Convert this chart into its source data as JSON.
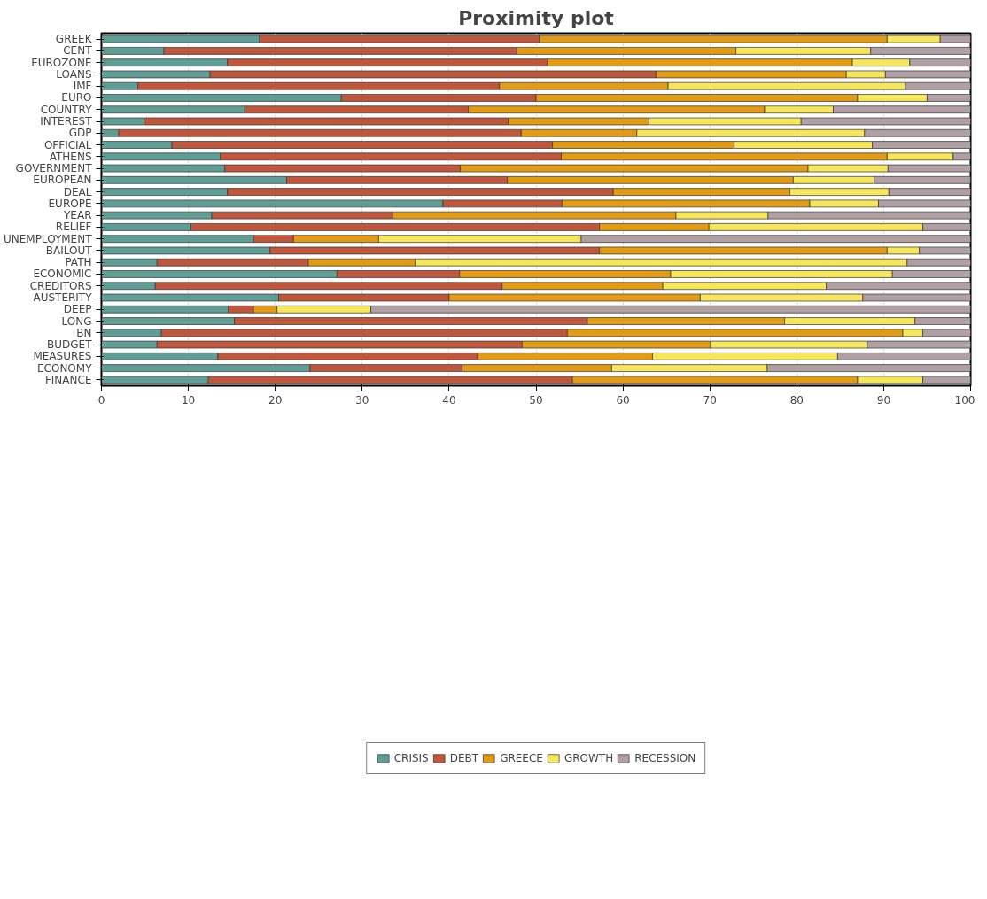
{
  "chart_data": {
    "type": "bar",
    "title": "Proximity plot",
    "orientation": "horizontal",
    "stacked": true,
    "categories": [
      "GREEK",
      "CENT",
      "EUROZONE",
      "LOANS",
      "IMF",
      "EURO",
      "COUNTRY",
      "INTEREST",
      "GDP",
      "OFFICIAL",
      "ATHENS",
      "GOVERNMENT",
      "EUROPEAN",
      "DEAL",
      "EUROPE",
      "YEAR",
      "RELIEF",
      "UNEMPLOYMENT",
      "BAILOUT",
      "PATH",
      "ECONOMIC",
      "CREDITORS",
      "AUSTERITY",
      "DEEP",
      "LONG",
      "BN",
      "BUDGET",
      "MEASURES",
      "ECONOMY",
      "FINANCE"
    ],
    "series": [
      {
        "name": "CRISIS",
        "color": "#5f9e96",
        "values": [
          18.2,
          7.2,
          14.5,
          12.5,
          4.2,
          27.6,
          16.5,
          4.9,
          2.0,
          8.1,
          13.7,
          14.2,
          21.3,
          14.5,
          39.3,
          12.7,
          10.3,
          17.5,
          19.4,
          6.4,
          27.1,
          6.2,
          20.4,
          14.6,
          15.3,
          6.9,
          6.4,
          13.4,
          24.0,
          12.3
        ]
      },
      {
        "name": "DEBT",
        "color": "#c0573a",
        "values": [
          32.2,
          40.6,
          36.8,
          51.3,
          41.6,
          22.4,
          25.7,
          41.9,
          46.3,
          43.8,
          39.2,
          27.1,
          25.4,
          44.4,
          13.7,
          20.8,
          47.0,
          4.6,
          37.9,
          17.4,
          14.1,
          39.9,
          19.6,
          2.9,
          40.6,
          46.7,
          42.0,
          29.9,
          17.5,
          41.9
        ]
      },
      {
        "name": "GREECE",
        "color": "#e39b14",
        "values": [
          40.0,
          25.2,
          35.1,
          21.9,
          19.4,
          37.0,
          34.1,
          16.2,
          13.3,
          20.9,
          37.5,
          40.0,
          32.9,
          20.3,
          28.5,
          32.6,
          12.6,
          9.8,
          33.1,
          12.3,
          24.3,
          18.5,
          28.9,
          2.7,
          22.7,
          38.6,
          21.7,
          20.1,
          17.2,
          32.8
        ]
      },
      {
        "name": "GROWTH",
        "color": "#f5e65a",
        "values": [
          6.1,
          15.5,
          6.6,
          4.5,
          27.3,
          8.0,
          7.9,
          17.5,
          26.2,
          15.9,
          7.6,
          9.2,
          9.3,
          11.4,
          7.9,
          10.6,
          24.6,
          23.3,
          3.7,
          56.6,
          25.5,
          18.8,
          18.7,
          10.8,
          15.0,
          2.3,
          18.0,
          21.3,
          17.9,
          7.5
        ]
      },
      {
        "name": "RECESSION",
        "color": "#b0a0a4",
        "values": [
          3.5,
          11.5,
          7.0,
          9.8,
          7.5,
          5.0,
          15.8,
          19.5,
          12.2,
          11.3,
          2.0,
          9.5,
          11.1,
          9.4,
          10.6,
          23.3,
          5.5,
          44.8,
          5.9,
          7.3,
          9.0,
          16.6,
          12.4,
          69.0,
          6.4,
          5.5,
          11.9,
          15.3,
          23.4,
          5.5
        ]
      }
    ],
    "xlim": [
      0,
      100
    ],
    "xticks": [
      0,
      10,
      20,
      30,
      40,
      50,
      60,
      70,
      80,
      90,
      100
    ],
    "grid": "x",
    "legend": "bottom"
  }
}
